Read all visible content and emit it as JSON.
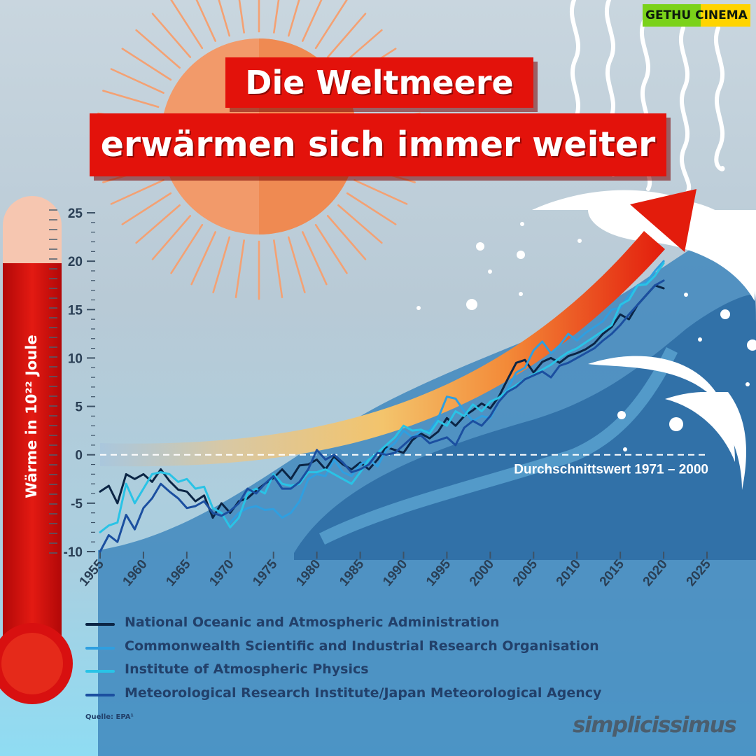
{
  "title": {
    "line1": "Die Weltmeere",
    "line2": "erwärmen sich immer weiter"
  },
  "thermometer": {
    "ylabel": "Wärme in 10²² Joule"
  },
  "baseline_label": "Durchschnittswert 1971 – 2000",
  "legend": [
    {
      "name": "National Oceanic and Atmospheric Administration",
      "color": "#0b2545"
    },
    {
      "name": "Commonwealth Scientific and Industrial Research Organisation",
      "color": "#2f9fe0"
    },
    {
      "name": "Institute of Atmospheric Physics",
      "color": "#29c3e6"
    },
    {
      "name": "Meteorological Research Institute/Japan Meteorological Agency",
      "color": "#1b4fa0"
    }
  ],
  "source": "Quelle: EPA¹",
  "brand": "simplicissimus",
  "watermark": "GETHU CINEMA",
  "colors": {
    "title_bg": "#e3120b",
    "thermo_red": "#d81010",
    "arrow_start": "#f0b36a",
    "arrow_end": "#e31c0c",
    "sun": "#f29a6a"
  },
  "chart_data": {
    "type": "line",
    "ylabel": "Wärme in 10²² Joule",
    "xlim": [
      1955,
      2025
    ],
    "ylim": [
      -10,
      25
    ],
    "xticks": [
      1955,
      1960,
      1965,
      1970,
      1975,
      1980,
      1985,
      1990,
      1995,
      2000,
      2005,
      2010,
      2015,
      2020,
      2025
    ],
    "yticks": [
      -10,
      -5,
      0,
      5,
      10,
      15,
      20,
      25
    ],
    "reference_line": {
      "y": 0,
      "label": "Durchschnittswert 1971 – 2000"
    },
    "grid": false,
    "legend_position": "bottom",
    "series": [
      {
        "name": "National Oceanic and Atmospheric Administration",
        "color": "#0b2545",
        "x": [
          1955,
          1956,
          1957,
          1958,
          1959,
          1960,
          1961,
          1962,
          1963,
          1964,
          1965,
          1966,
          1967,
          1968,
          1969,
          1970,
          1971,
          1972,
          1973,
          1974,
          1975,
          1976,
          1977,
          1978,
          1979,
          1980,
          1981,
          1982,
          1983,
          1984,
          1985,
          1986,
          1987,
          1988,
          1989,
          1990,
          1991,
          1992,
          1993,
          1994,
          1995,
          1996,
          1997,
          1998,
          1999,
          2000,
          2001,
          2002,
          2003,
          2004,
          2005,
          2006,
          2007,
          2008,
          2009,
          2010,
          2011,
          2012,
          2013,
          2014,
          2015,
          2016,
          2017,
          2018,
          2019,
          2020
        ],
        "values": [
          -3.8,
          -3.2,
          -5.0,
          -2.0,
          -2.5,
          -2.0,
          -2.8,
          -1.5,
          -2.7,
          -3.6,
          -3.8,
          -4.8,
          -4.2,
          -6.5,
          -5.0,
          -6.0,
          -4.8,
          -4.5,
          -3.7,
          -3.0,
          -2.4,
          -1.5,
          -2.5,
          -1.1,
          -1.0,
          -0.5,
          -1.5,
          -0.2,
          -1.0,
          -1.5,
          -0.8,
          -1.5,
          -0.5,
          0.8,
          0.5,
          0.2,
          1.5,
          2.2,
          1.7,
          2.4,
          3.8,
          3.0,
          4.0,
          4.6,
          5.3,
          4.8,
          6.0,
          7.8,
          9.5,
          9.8,
          8.5,
          9.6,
          10.0,
          9.5,
          10.2,
          10.5,
          10.9,
          11.5,
          12.5,
          13.2,
          14.5,
          14.0,
          15.5,
          16.5,
          17.5,
          17.2
        ]
      },
      {
        "name": "Commonwealth Scientific and Industrial Research Organisation",
        "color": "#2f9fe0",
        "x": [
          1970,
          1971,
          1972,
          1973,
          1974,
          1975,
          1976,
          1977,
          1978,
          1979,
          1980,
          1981,
          1982,
          1983,
          1984,
          1985,
          1986,
          1987,
          1988,
          1989,
          1990,
          1991,
          1992,
          1993,
          1994,
          1995,
          1996,
          1997,
          1998,
          1999,
          2000,
          2001,
          2002,
          2003,
          2004,
          2005,
          2006,
          2007,
          2008,
          2009,
          2010,
          2011,
          2012,
          2013,
          2014,
          2015,
          2016,
          2017,
          2018,
          2019,
          2020
        ],
        "values": [
          -7.0,
          -6.0,
          -5.5,
          -5.3,
          -5.7,
          -5.6,
          -6.5,
          -6.0,
          -4.8,
          -2.5,
          -2.0,
          -2.2,
          -0.5,
          -1.8,
          -2.2,
          -1.0,
          -0.5,
          -1.2,
          0.5,
          1.2,
          2.5,
          1.8,
          2.4,
          2.5,
          3.8,
          6.0,
          5.8,
          4.5,
          3.5,
          4.0,
          3.8,
          5.5,
          6.8,
          8.5,
          9.0,
          10.8,
          11.7,
          10.5,
          11.3,
          12.5,
          11.8,
          12.6,
          13.2,
          13.8,
          15.0,
          15.2,
          16.5,
          17.5,
          17.8,
          19.0,
          20.0
        ]
      },
      {
        "name": "Institute of Atmospheric Physics",
        "color": "#29c3e6",
        "x": [
          1955,
          1956,
          1957,
          1958,
          1959,
          1960,
          1961,
          1962,
          1963,
          1964,
          1965,
          1966,
          1967,
          1968,
          1969,
          1970,
          1971,
          1972,
          1973,
          1974,
          1975,
          1976,
          1977,
          1978,
          1979,
          1980,
          1981,
          1982,
          1983,
          1984,
          1985,
          1986,
          1987,
          1988,
          1989,
          1990,
          1991,
          1992,
          1993,
          1994,
          1995,
          1996,
          1997,
          1998,
          1999,
          2000,
          2001,
          2002,
          2003,
          2004,
          2005,
          2006,
          2007,
          2008,
          2009,
          2010,
          2011,
          2012,
          2013,
          2014,
          2015,
          2016,
          2017,
          2018,
          2019,
          2020
        ],
        "values": [
          -8.0,
          -7.3,
          -7.0,
          -3.0,
          -5.0,
          -3.5,
          -2.0,
          -1.8,
          -2.0,
          -2.8,
          -2.5,
          -3.5,
          -3.3,
          -5.5,
          -6.0,
          -7.5,
          -6.5,
          -4.0,
          -3.5,
          -4.0,
          -2.0,
          -3.0,
          -3.2,
          -3.0,
          -1.8,
          -1.8,
          -1.5,
          -2.0,
          -2.5,
          -3.0,
          -1.8,
          -0.5,
          0.2,
          1.0,
          1.8,
          3.0,
          2.5,
          2.6,
          2.2,
          3.5,
          3.0,
          4.5,
          4.0,
          5.2,
          4.5,
          5.5,
          5.9,
          6.6,
          7.2,
          7.8,
          8.3,
          8.8,
          9.3,
          10.0,
          10.6,
          11.0,
          11.6,
          12.2,
          12.8,
          13.4,
          15.5,
          16.0,
          17.5,
          17.6,
          18.5,
          19.8
        ]
      },
      {
        "name": "Meteorological Research Institute/Japan Meteorological Agency",
        "color": "#1b4fa0",
        "x": [
          1955,
          1956,
          1957,
          1958,
          1959,
          1960,
          1961,
          1962,
          1963,
          1964,
          1965,
          1966,
          1967,
          1968,
          1969,
          1970,
          1971,
          1972,
          1973,
          1974,
          1975,
          1976,
          1977,
          1978,
          1979,
          1980,
          1981,
          1982,
          1983,
          1984,
          1985,
          1986,
          1987,
          1988,
          1989,
          1990,
          1991,
          1992,
          1993,
          1994,
          1995,
          1996,
          1997,
          1998,
          1999,
          2000,
          2001,
          2002,
          2003,
          2004,
          2005,
          2006,
          2007,
          2008,
          2009,
          2010,
          2011,
          2012,
          2013,
          2014,
          2015,
          2016,
          2017,
          2018,
          2019,
          2020
        ],
        "values": [
          -10.0,
          -8.3,
          -9.0,
          -6.2,
          -7.7,
          -5.5,
          -4.5,
          -3.0,
          -3.8,
          -4.5,
          -5.5,
          -5.3,
          -4.8,
          -6.0,
          -6.3,
          -5.8,
          -5.0,
          -3.5,
          -4.0,
          -3.0,
          -2.2,
          -3.5,
          -3.5,
          -2.8,
          -1.5,
          0.5,
          -0.5,
          0.0,
          -0.8,
          -1.8,
          -1.5,
          -1.0,
          0.2,
          0.0,
          0.2,
          1.0,
          1.8,
          2.0,
          1.2,
          1.5,
          1.8,
          1.0,
          2.8,
          3.5,
          3.0,
          4.0,
          5.5,
          6.5,
          7.0,
          7.8,
          8.2,
          8.6,
          8.0,
          9.2,
          9.5,
          10.0,
          10.5,
          11.0,
          11.8,
          12.5,
          13.4,
          14.5,
          15.5,
          16.5,
          17.5,
          18.0
        ]
      }
    ]
  }
}
